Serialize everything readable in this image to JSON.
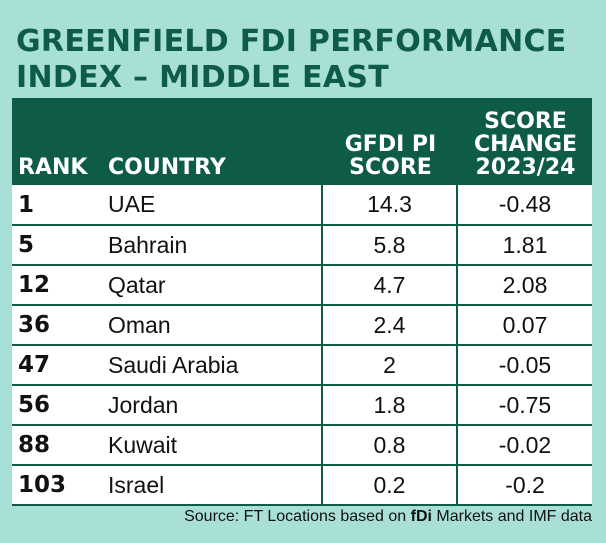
{
  "title": {
    "line1": "GREENFIELD FDI PERFORMANCE",
    "line2": "INDEX – MIDDLE EAST"
  },
  "colors": {
    "background": "#a8e0d8",
    "header": "#0e5b47",
    "rule": "#0e5b47"
  },
  "columns": {
    "rank": "RANK",
    "country": "COUNTRY",
    "score_line1": "GFDI PI",
    "score_line2": "SCORE",
    "change_line1": "SCORE",
    "change_line2": "CHANGE",
    "change_line3": "2023/24"
  },
  "chart_data": {
    "type": "table",
    "title": "GREENFIELD FDI PERFORMANCE INDEX – MIDDLE EAST",
    "headers": [
      "RANK",
      "COUNTRY",
      "GFDI PI SCORE",
      "SCORE CHANGE 2023/24"
    ],
    "rows": [
      {
        "rank": "1",
        "country": "UAE",
        "score": "14.3",
        "change": "-0.48"
      },
      {
        "rank": "5",
        "country": "Bahrain",
        "score": "5.8",
        "change": "1.81"
      },
      {
        "rank": "12",
        "country": "Qatar",
        "score": "4.7",
        "change": "2.08"
      },
      {
        "rank": "36",
        "country": "Oman",
        "score": "2.4",
        "change": "0.07"
      },
      {
        "rank": "47",
        "country": "Saudi Arabia",
        "score": "2",
        "change": "-0.05"
      },
      {
        "rank": "56",
        "country": "Jordan",
        "score": "1.8",
        "change": "-0.75"
      },
      {
        "rank": "88",
        "country": "Kuwait",
        "score": "0.8",
        "change": "-0.02"
      },
      {
        "rank": "103",
        "country": "Israel",
        "score": "0.2",
        "change": "-0.2"
      }
    ]
  },
  "source": {
    "prefix": "Source: FT Locations based on ",
    "brand": "fDi",
    "suffix": " Markets and IMF data"
  }
}
